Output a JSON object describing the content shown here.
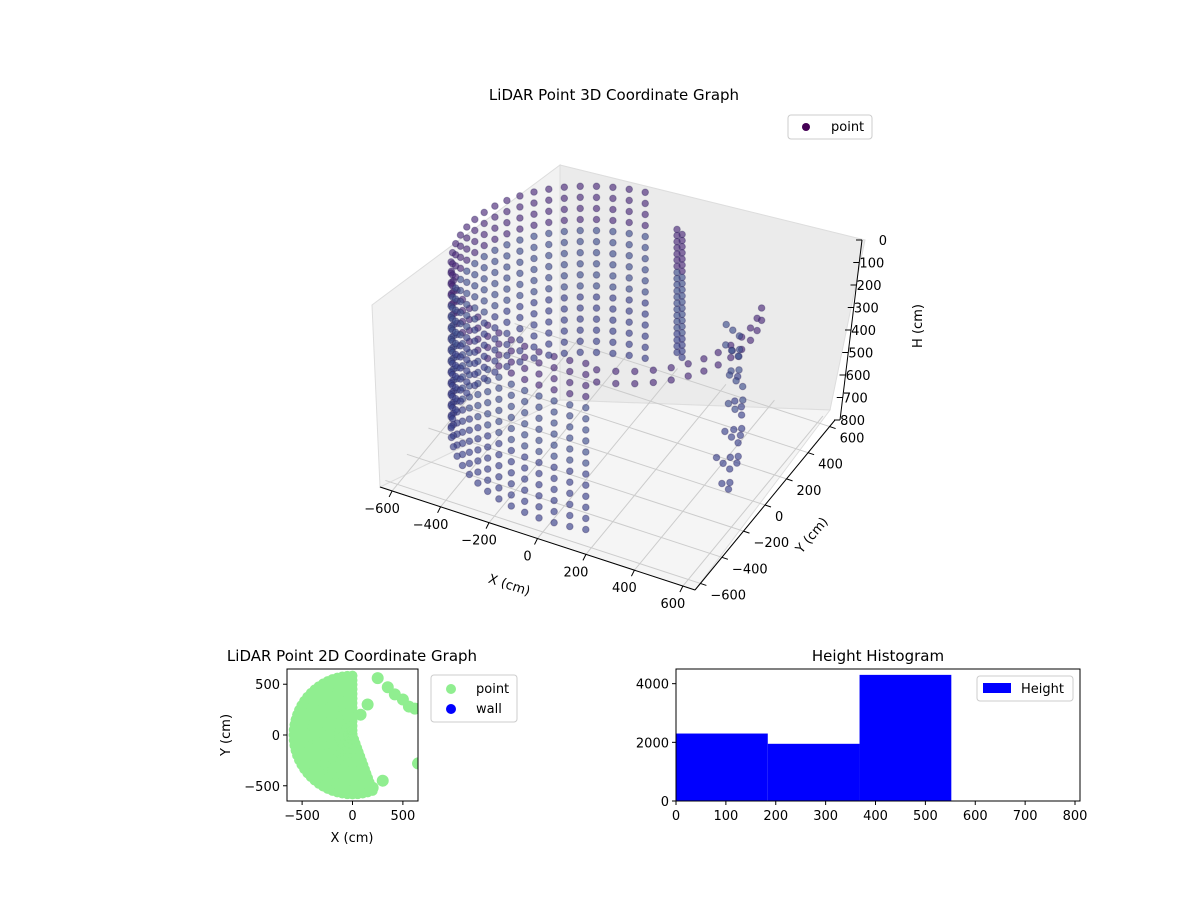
{
  "colors": {
    "background": "#ffffff",
    "pane": "#f2f2f2",
    "grid": "#cccccc",
    "point3d_dark": "#440154",
    "point3d_mid": "#3b528b",
    "point2d": "#90ee90",
    "wall": "#0000ff",
    "histogram": "#0000ff"
  },
  "chart_data": [
    {
      "type": "scatter",
      "projection": "3d",
      "title": "LiDAR Point 3D Coordinate Graph",
      "xlabel": "X (cm)",
      "ylabel": "Y (cm)",
      "zlabel": "H (cm)",
      "xlim": [
        -650,
        650
      ],
      "ylim": [
        -650,
        650
      ],
      "zlim": [
        800,
        0
      ],
      "xticks": [
        "−600",
        "−400",
        "−200",
        "0",
        "200",
        "400",
        "600"
      ],
      "yticks": [
        "−600",
        "−400",
        "−200",
        "0",
        "200",
        "400",
        "600"
      ],
      "zticks": [
        "0",
        "100",
        "200",
        "300",
        "400",
        "500",
        "600",
        "700",
        "800"
      ],
      "legend": {
        "position": "top-right",
        "entries": [
          {
            "label": "point",
            "color": "#440154"
          }
        ]
      },
      "series": [
        {
          "name": "point",
          "description": "cylindrical wall of points radius ~600 cm spanning X -600..300, plus scattered clusters near X 300..600",
          "points_sample": [
            [
              -590,
              0,
              100
            ],
            [
              -560,
              -180,
              100
            ],
            [
              -480,
              -350,
              100
            ],
            [
              -350,
              -480,
              100
            ],
            [
              -180,
              -560,
              100
            ],
            [
              0,
              -590,
              100
            ],
            [
              180,
              -560,
              100
            ],
            [
              350,
              -480,
              100
            ],
            [
              -560,
              180,
              100
            ],
            [
              -480,
              350,
              100
            ],
            [
              -350,
              480,
              100
            ],
            [
              -180,
              560,
              100
            ],
            [
              0,
              590,
              100
            ],
            [
              180,
              560,
              100
            ],
            [
              350,
              480,
              100
            ],
            [
              -590,
              0,
              400
            ],
            [
              -560,
              -180,
              400
            ],
            [
              -480,
              -350,
              400
            ],
            [
              -350,
              -480,
              400
            ],
            [
              -180,
              -560,
              400
            ],
            [
              0,
              -590,
              400
            ],
            [
              -560,
              180,
              400
            ],
            [
              -480,
              350,
              400
            ],
            [
              -350,
              480,
              400
            ],
            [
              0,
              590,
              400
            ],
            [
              -590,
              0,
              700
            ],
            [
              -560,
              -180,
              700
            ],
            [
              -480,
              -350,
              700
            ],
            [
              -350,
              -480,
              700
            ],
            [
              -180,
              -560,
              700
            ],
            [
              0,
              -590,
              700
            ],
            [
              420,
              250,
              350
            ],
            [
              480,
              150,
              400
            ],
            [
              520,
              50,
              450
            ],
            [
              550,
              -50,
              500
            ],
            [
              560,
              -150,
              550
            ],
            [
              400,
              300,
              300
            ]
          ]
        }
      ]
    },
    {
      "type": "scatter",
      "title": "LiDAR Point 2D Coordinate Graph",
      "xlabel": "X (cm)",
      "ylabel": "Y (cm)",
      "xlim": [
        -650,
        650
      ],
      "ylim": [
        -650,
        650
      ],
      "xticks": [
        -500,
        0,
        500
      ],
      "yticks": [
        -500,
        0,
        500
      ],
      "legend": {
        "position": "outside-right",
        "entries": [
          {
            "label": "point",
            "color": "#90ee90"
          },
          {
            "label": "wall",
            "color": "#0000ff"
          }
        ]
      },
      "series": [
        {
          "name": "point",
          "description": "dense filled disk radius ~600 cm, mostly X < 300",
          "points_sample": [
            [
              -600,
              0
            ],
            [
              -500,
              -300
            ],
            [
              -300,
              -520
            ],
            [
              0,
              -600
            ],
            [
              300,
              -450
            ],
            [
              -300,
              520
            ],
            [
              0,
              600
            ],
            [
              250,
              560
            ],
            [
              450,
              250
            ],
            [
              600,
              250
            ],
            [
              650,
              -280
            ]
          ]
        },
        {
          "name": "wall",
          "points_sample": []
        }
      ]
    },
    {
      "type": "bar",
      "subtype": "histogram",
      "title": "Height Histogram",
      "xlabel": "",
      "ylabel": "",
      "xlim": [
        0,
        810
      ],
      "ylim": [
        0,
        4500
      ],
      "xticks": [
        0,
        100,
        200,
        300,
        400,
        500,
        600,
        700,
        800
      ],
      "yticks": [
        0,
        2000,
        4000
      ],
      "legend": {
        "position": "top-right",
        "entries": [
          {
            "label": "Height",
            "color": "#0000ff"
          }
        ]
      },
      "series": [
        {
          "name": "Height",
          "bin_edges": [
            0,
            184,
            368,
            552,
            736
          ],
          "values": [
            2300,
            1950,
            4300,
            0
          ]
        }
      ]
    }
  ]
}
